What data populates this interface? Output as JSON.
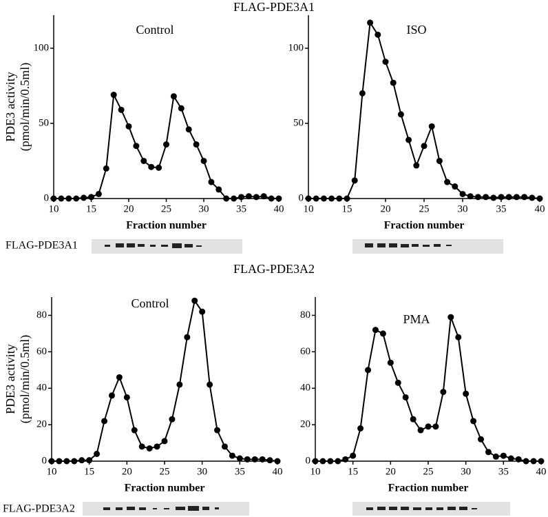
{
  "sections": [
    {
      "title": "FLAG-PDE3A1",
      "blot_label": "FLAG-PDE3A1"
    },
    {
      "title": "FLAG-PDE3A2",
      "blot_label": "FLAG-PDE3A2"
    }
  ],
  "chart_data": [
    {
      "type": "line",
      "title": "Control",
      "ylabel": [
        "PDE3 activity",
        "(pmol/min/0.5ml)"
      ],
      "xlabel": "Fraction number",
      "x": [
        10,
        11,
        12,
        13,
        14,
        15,
        16,
        17,
        18,
        19,
        20,
        21,
        22,
        23,
        24,
        25,
        26,
        27,
        28,
        29,
        30,
        31,
        32,
        33,
        34,
        35,
        36,
        37,
        38,
        39,
        40
      ],
      "values": [
        0,
        0,
        0,
        0,
        0.5,
        1,
        3,
        20,
        69,
        59,
        48,
        35,
        25,
        21,
        20.5,
        36,
        68,
        60,
        46,
        36,
        25,
        11,
        6,
        0,
        0,
        1,
        1.5,
        1,
        1.5,
        0,
        0
      ],
      "color": "#000000",
      "xlim": [
        10,
        40
      ],
      "xticks": [
        10,
        15,
        20,
        25,
        30,
        35,
        40
      ],
      "ylim": [
        0,
        122
      ],
      "yticks": [
        0,
        50,
        100
      ]
    },
    {
      "type": "line",
      "title": "ISO",
      "xlabel": "Fraction number",
      "x": [
        10,
        11,
        12,
        13,
        14,
        15,
        16,
        17,
        18,
        19,
        20,
        21,
        22,
        23,
        24,
        25,
        26,
        27,
        28,
        29,
        30,
        31,
        32,
        33,
        34,
        35,
        36,
        37,
        38,
        39,
        40
      ],
      "values": [
        0,
        0,
        0,
        0,
        0,
        0,
        12,
        70,
        117,
        109,
        91,
        77,
        56,
        39,
        22,
        35,
        48,
        25,
        11,
        8,
        3,
        1.5,
        1,
        1,
        0.5,
        1,
        1,
        1,
        1,
        0.5,
        0
      ],
      "color": "#000000",
      "xlim": [
        10,
        40
      ],
      "xticks": [
        10,
        15,
        20,
        25,
        30,
        35,
        40
      ],
      "ylim": [
        0,
        122
      ],
      "yticks": [
        0,
        50,
        100
      ]
    },
    {
      "type": "line",
      "title": "Control",
      "ylabel": [
        "PDE3 activity",
        "(pmol/min/0.5ml)"
      ],
      "xlabel": "Fraction number",
      "x": [
        10,
        11,
        12,
        13,
        14,
        15,
        16,
        17,
        18,
        19,
        20,
        21,
        22,
        23,
        24,
        25,
        26,
        27,
        28,
        29,
        30,
        31,
        32,
        33,
        34,
        35,
        36,
        37,
        38,
        39,
        40
      ],
      "values": [
        0,
        0,
        0,
        0,
        0.5,
        0.5,
        4,
        22,
        36,
        46,
        35,
        17,
        8,
        7,
        8,
        11,
        23,
        42,
        68,
        88,
        82,
        42,
        17,
        8,
        3,
        1.5,
        1,
        1,
        1,
        0.5,
        0
      ],
      "color": "#000000",
      "xlim": [
        10,
        40
      ],
      "xticks": [
        10,
        15,
        20,
        25,
        30,
        35,
        40
      ],
      "ylim": [
        0,
        90
      ],
      "yticks": [
        0,
        20,
        40,
        60,
        80
      ]
    },
    {
      "type": "line",
      "title": "PMA",
      "xlabel": "Fraction number",
      "x": [
        10,
        11,
        12,
        13,
        14,
        15,
        16,
        17,
        18,
        19,
        20,
        21,
        22,
        23,
        24,
        25,
        26,
        27,
        28,
        29,
        30,
        31,
        32,
        33,
        34,
        35,
        36,
        37,
        38,
        39,
        40
      ],
      "values": [
        0,
        0,
        0,
        0,
        1,
        3,
        18,
        50,
        72,
        70,
        54,
        43,
        35,
        23,
        17,
        19,
        19,
        38,
        79,
        68,
        37,
        22,
        12,
        5,
        2.5,
        3,
        1.5,
        1,
        0,
        0,
        0
      ],
      "color": "#000000",
      "xlim": [
        10,
        40
      ],
      "xticks": [
        10,
        15,
        20,
        25,
        30,
        35,
        40
      ],
      "ylim": [
        0,
        90
      ],
      "yticks": [
        0,
        20,
        40,
        60,
        80
      ]
    }
  ]
}
